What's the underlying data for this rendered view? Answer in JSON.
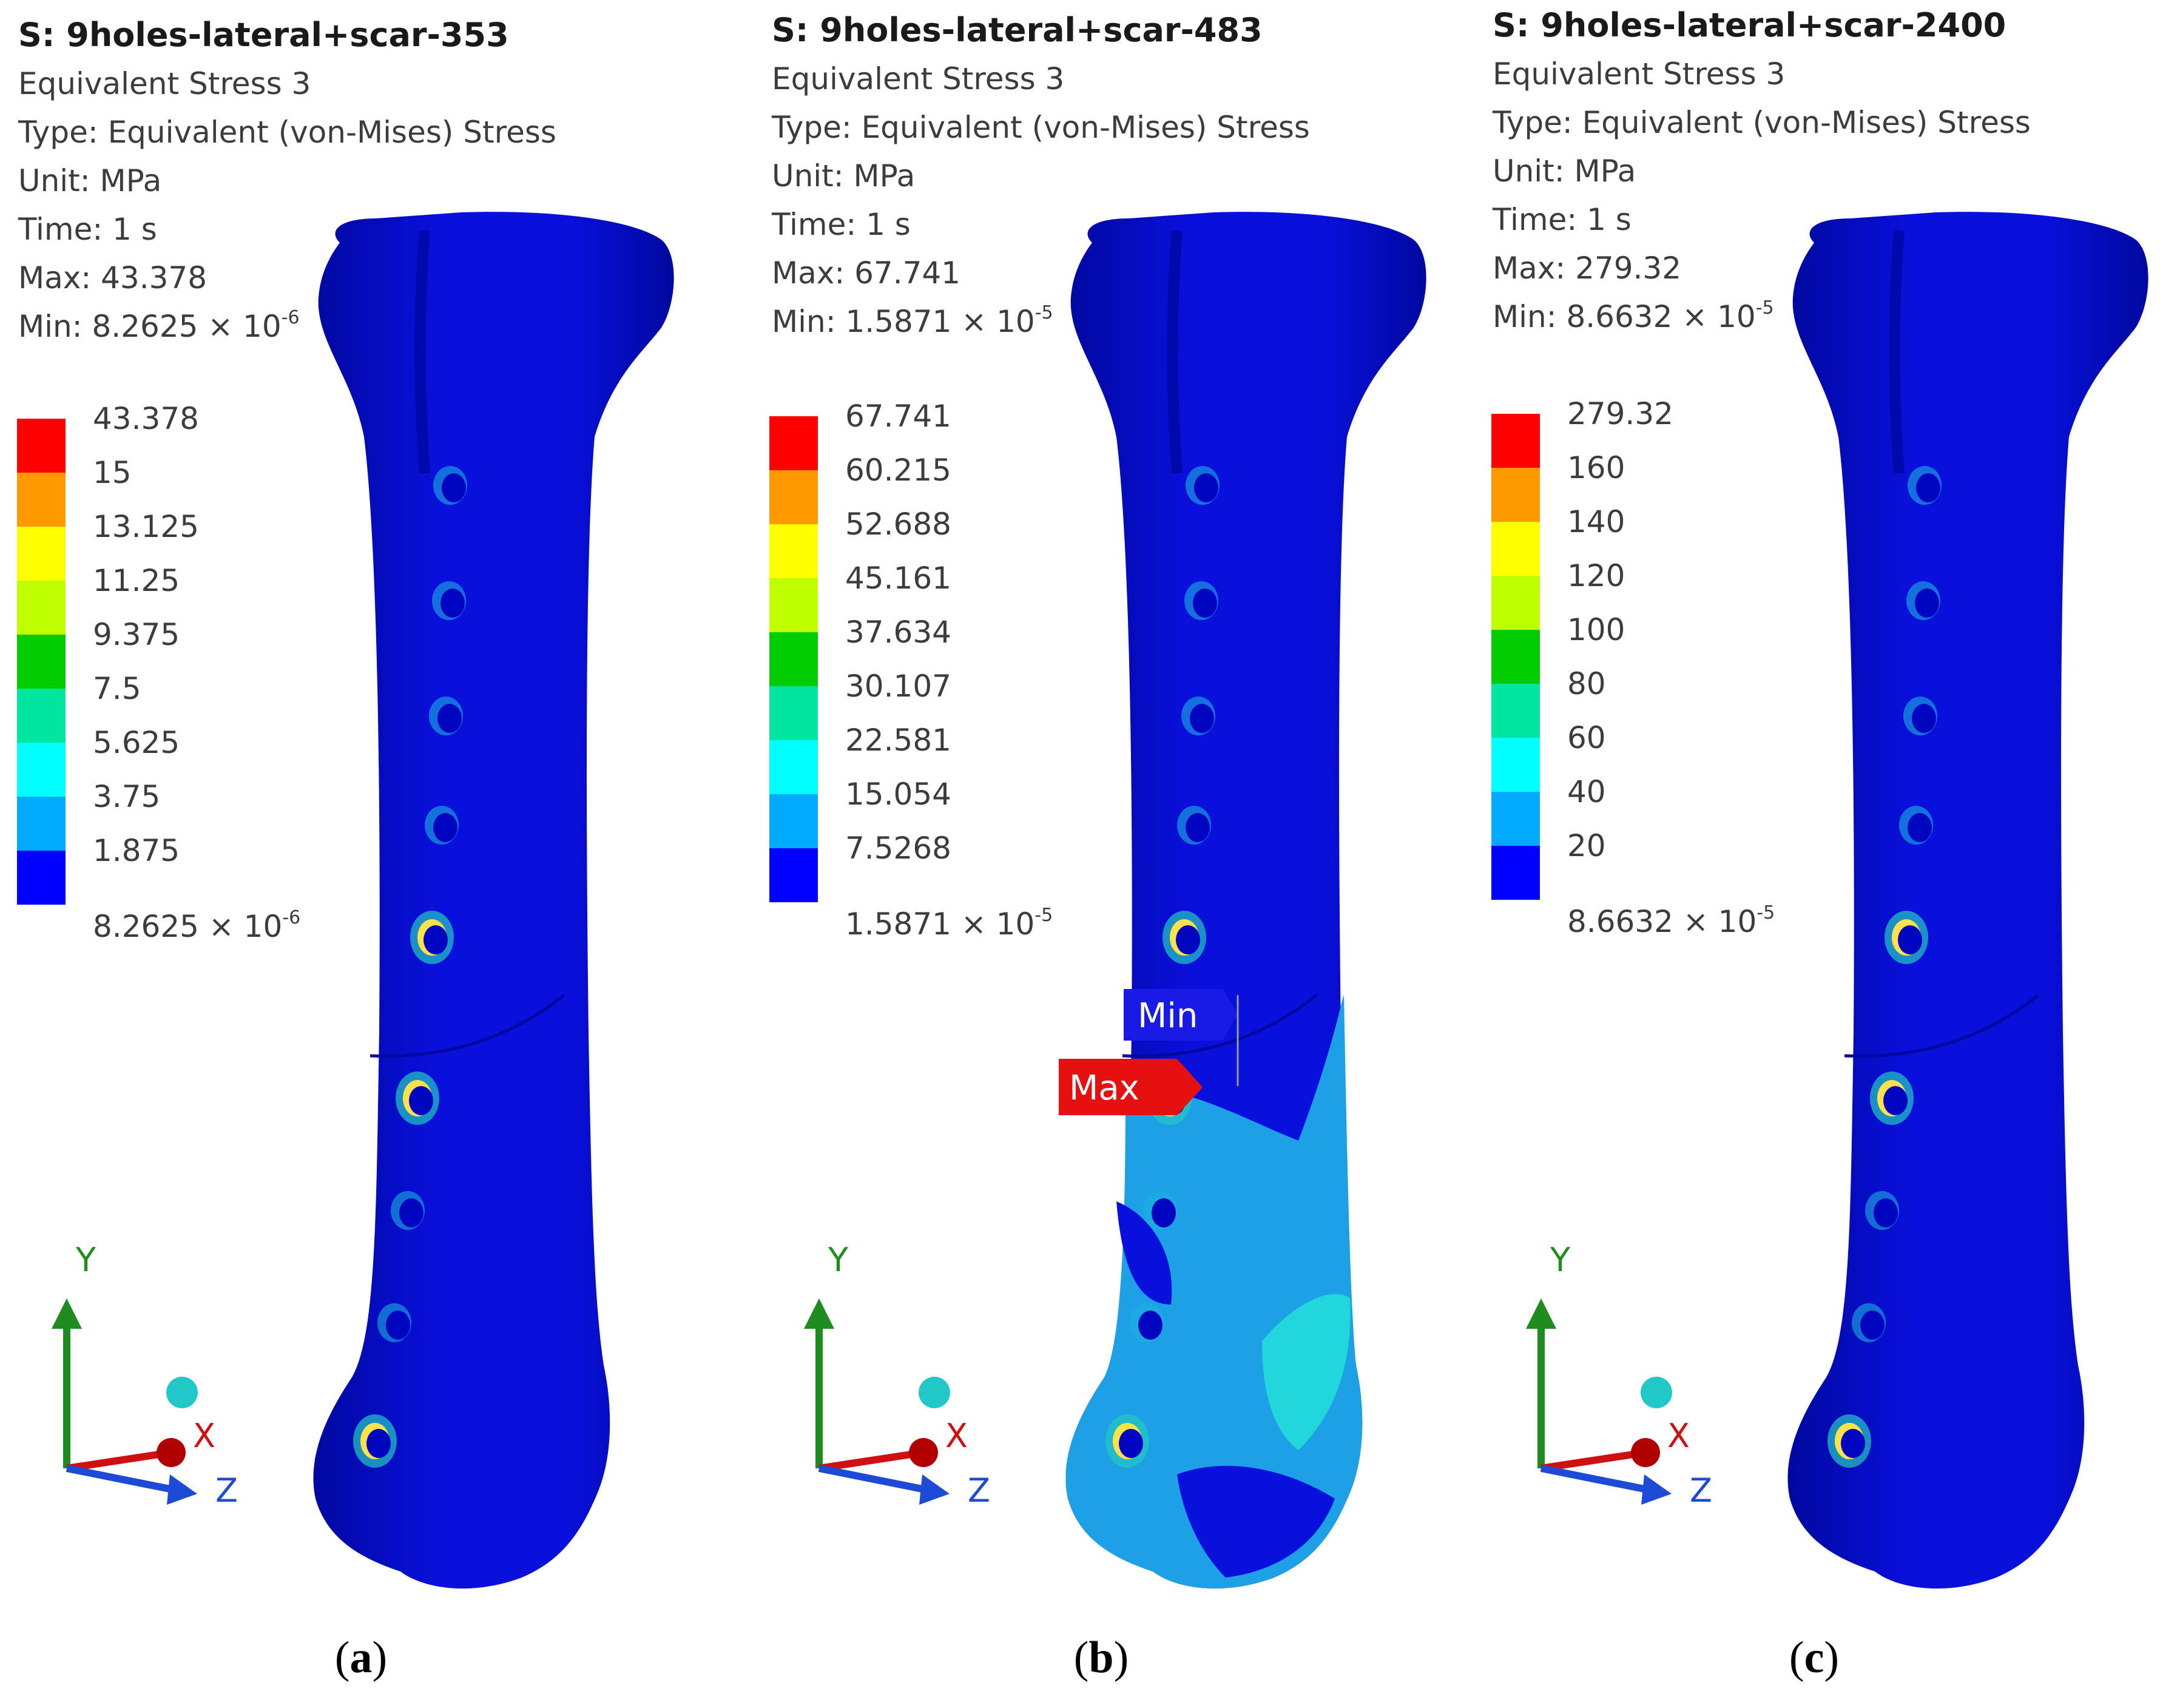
{
  "panels": [
    {
      "id": "a",
      "header": {
        "title": "S: 9holes-lateral+scar-353",
        "result": "Equivalent Stress 3",
        "type": "Type: Equivalent (von-Mises) Stress",
        "unit": "Unit: MPa",
        "time": "Time: 1 s",
        "max": "Max: 43.378",
        "min_prefix": "Min: 8.2625 × 10",
        "min_exp": "-6"
      },
      "legend": {
        "top": "43.378",
        "labels": [
          "15",
          "13.125",
          "11.25",
          "9.375",
          "7.5",
          "5.625",
          "3.75",
          "1.875"
        ],
        "bottom_mantissa": "8.2625 × 10",
        "bottom_exp": "-6"
      },
      "caption_letter": "a"
    },
    {
      "id": "b",
      "header": {
        "title": "S: 9holes-lateral+scar-483",
        "result": "Equivalent Stress 3",
        "type": "Type: Equivalent (von-Mises) Stress",
        "unit": "Unit: MPa",
        "time": "Time: 1 s",
        "max": "Max: 67.741",
        "min_prefix": "Min: 1.5871 × 10",
        "min_exp": "-5"
      },
      "legend": {
        "top": "67.741",
        "labels": [
          "60.215",
          "52.688",
          "45.161",
          "37.634",
          "30.107",
          "22.581",
          "15.054",
          "7.5268"
        ],
        "bottom_mantissa": "1.5871 × 10",
        "bottom_exp": "-5"
      },
      "probes": {
        "min": "Min",
        "max": "Max"
      },
      "caption_letter": "b"
    },
    {
      "id": "c",
      "header": {
        "title": "S: 9holes-lateral+scar-2400",
        "result": "Equivalent Stress 3",
        "type": "Type: Equivalent (von-Mises) Stress",
        "unit": "Unit: MPa",
        "time": "Time: 1 s",
        "max": "Max: 279.32",
        "min_prefix": "Min: 8.6632 × 10",
        "min_exp": "-5"
      },
      "legend": {
        "top": "279.32",
        "labels": [
          "160",
          "140",
          "120",
          "100",
          "80",
          "60",
          "40",
          "20"
        ],
        "bottom_mantissa": "8.6632 × 10",
        "bottom_exp": "-5"
      },
      "caption_letter": "c"
    }
  ],
  "axes": {
    "y": "Y",
    "x": "X",
    "z": "Z"
  },
  "colors": {
    "legend_scale": [
      "#ff0000",
      "#ff9900",
      "#ffff00",
      "#bfff00",
      "#00cc00",
      "#00e6a0",
      "#00ffff",
      "#00aaff",
      "#0000ff"
    ],
    "bone_base": "#0a10dc",
    "bone_dark": "#0008a0",
    "stress_light": "#1ea0e6",
    "stress_cyan": "#22e0d8",
    "axis_y": "#1e8c1e",
    "axis_x": "#d01010",
    "axis_z": "#1e4ad8",
    "min_probe": "#1a1ae6",
    "max_probe": "#e61010"
  }
}
